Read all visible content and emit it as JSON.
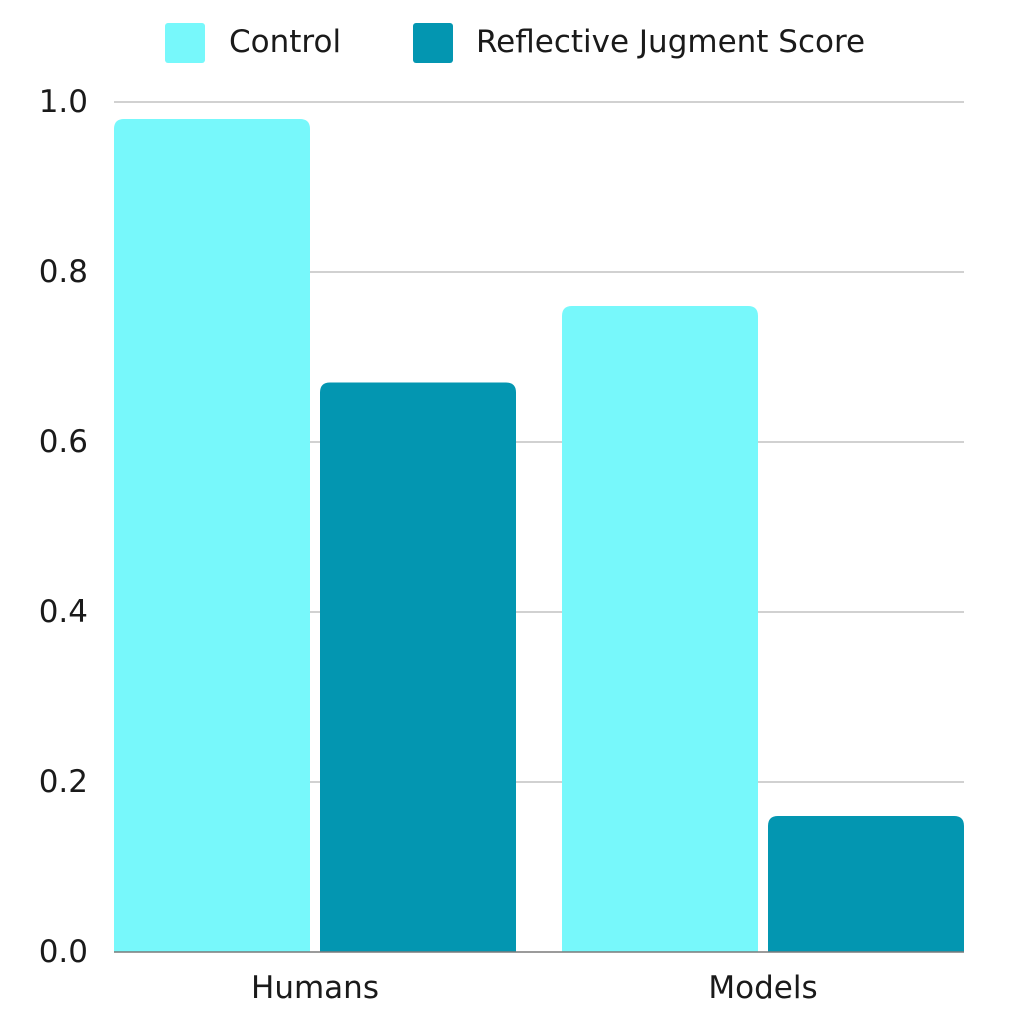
{
  "chart_data": {
    "type": "bar",
    "title": "",
    "xlabel": "",
    "ylabel": "",
    "categories": [
      "Humans",
      "Models"
    ],
    "series": [
      {
        "name": "Control",
        "color": "#77f8fb",
        "values": [
          0.98,
          0.76
        ]
      },
      {
        "name": "Reflective Jugment Score",
        "color": "#0396b1",
        "values": [
          0.67,
          0.16
        ]
      }
    ],
    "ylim": [
      0,
      1.0
    ],
    "yticks": [
      "0.0",
      "0.2",
      "0.4",
      "0.6",
      "0.8",
      "1.0"
    ],
    "grid": true,
    "legend_position": "top-center"
  }
}
